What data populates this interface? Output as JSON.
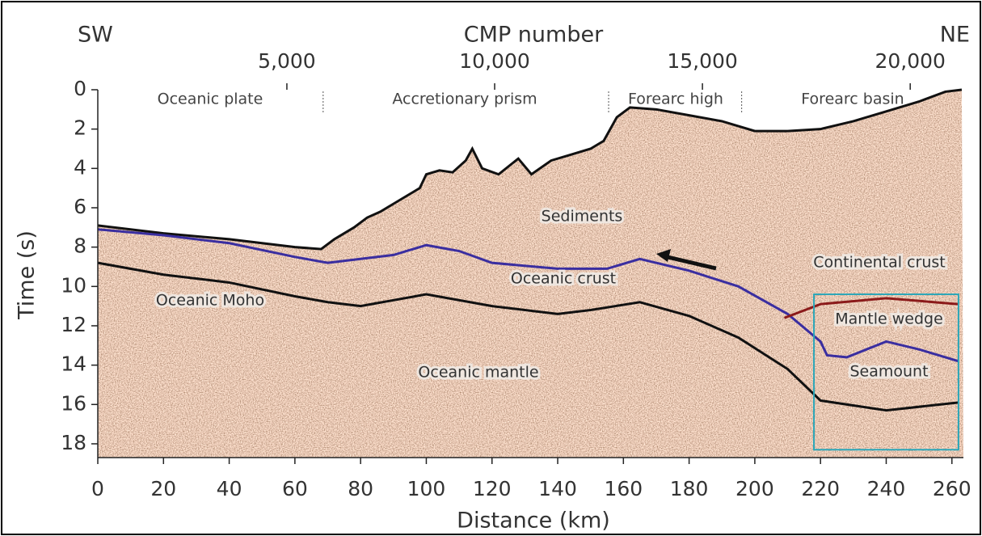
{
  "chart_data": {
    "type": "seismic-section",
    "direction_left": "SW",
    "direction_right": "NE",
    "x2_label": "CMP number",
    "xlabel": "Distance (km)",
    "ylabel": "Time (s)",
    "xlim": [
      0,
      263.5
    ],
    "xticks": [
      0,
      20,
      40,
      60,
      80,
      100,
      120,
      140,
      160,
      180,
      200,
      220,
      240,
      260
    ],
    "ylim": [
      0,
      18.7
    ],
    "yticks": [
      0,
      2,
      4,
      6,
      8,
      10,
      12,
      14,
      16,
      18
    ],
    "x2lim": [
      450,
      21280
    ],
    "x2ticks": [
      {
        "value": 5000,
        "label": "5,000"
      },
      {
        "value": 10000,
        "label": "10,000"
      },
      {
        "value": 15000,
        "label": "15,000"
      },
      {
        "value": 20000,
        "label": "20,000"
      }
    ],
    "regions": [
      "Oceanic plate",
      "Accretionary prism",
      "Forearc high",
      "Forearc basin"
    ],
    "region_boundaries": [
      68.6,
      155.5,
      196
    ],
    "annotations": [
      "Sediments",
      "Oceanic crust",
      "Oceanic Moho",
      "Oceanic mantle",
      "Continental crust",
      "Mantle wedge",
      "Seamount"
    ],
    "horizons": [
      {
        "color": "#111111",
        "x": [
          0,
          20,
          40,
          60,
          68,
          72,
          78,
          82,
          86,
          90,
          94,
          98,
          100,
          104,
          108,
          112,
          114,
          117,
          122,
          128,
          132,
          138,
          144,
          150,
          154,
          158,
          162,
          170,
          180,
          190,
          200,
          210,
          220,
          230,
          240,
          250,
          258,
          263
        ],
        "y": [
          6.9,
          7.3,
          7.6,
          8.0,
          8.1,
          7.6,
          7.0,
          6.5,
          6.2,
          5.8,
          5.4,
          5.0,
          4.3,
          4.1,
          4.2,
          3.6,
          3.0,
          4.0,
          4.3,
          3.5,
          4.3,
          3.6,
          3.3,
          3.0,
          2.6,
          1.4,
          0.9,
          1.0,
          1.3,
          1.6,
          2.1,
          2.1,
          2.0,
          1.6,
          1.1,
          0.6,
          0.1,
          0.0
        ]
      },
      {
        "color": "#3a2ea0",
        "x": [
          0,
          20,
          40,
          60,
          70,
          80,
          90,
          100,
          110,
          120,
          140,
          155,
          165,
          180,
          195,
          210,
          220,
          222,
          228,
          240,
          250,
          262
        ],
        "y": [
          7.1,
          7.4,
          7.8,
          8.5,
          8.8,
          8.6,
          8.4,
          7.9,
          8.2,
          8.8,
          9.1,
          9.1,
          8.6,
          9.2,
          10.0,
          11.4,
          12.8,
          13.5,
          13.6,
          12.8,
          13.2,
          13.8
        ]
      },
      {
        "color": "#111111",
        "x": [
          0,
          20,
          40,
          60,
          70,
          80,
          100,
          120,
          140,
          150,
          165,
          180,
          195,
          210,
          220,
          240,
          262
        ],
        "y": [
          8.8,
          9.4,
          9.8,
          10.5,
          10.8,
          11.0,
          10.4,
          11.0,
          11.4,
          11.2,
          10.8,
          11.5,
          12.6,
          14.2,
          15.8,
          16.3,
          15.9
        ]
      },
      {
        "color": "#8b1a1a",
        "x": [
          209,
          220,
          240,
          262
        ],
        "y": [
          11.6,
          10.9,
          10.6,
          10.9
        ]
      }
    ],
    "highlight": {
      "x": [
        218,
        262
      ],
      "y": [
        10.4,
        18.3
      ],
      "color": "#2aa6b8"
    }
  }
}
